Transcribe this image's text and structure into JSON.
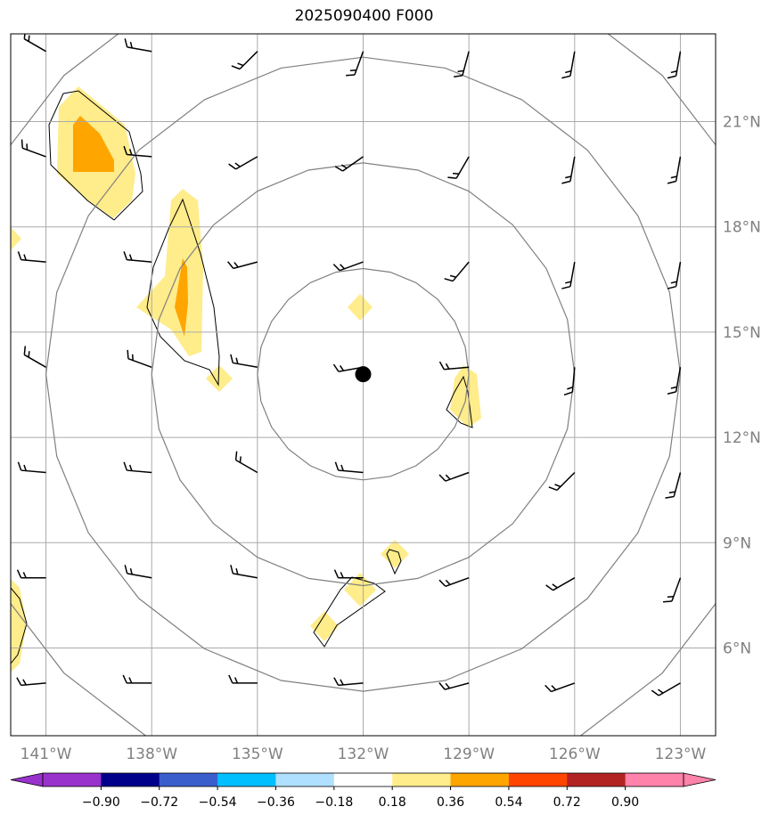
{
  "title": "2025090400 F000",
  "map": {
    "lon_range": [
      -142,
      -122
    ],
    "lat_range": [
      3.5,
      23.5
    ],
    "lon_labels": [
      "141°W",
      "138°W",
      "135°W",
      "132°W",
      "129°W",
      "126°W",
      "123°W"
    ],
    "lon_values": [
      -141,
      -138,
      -135,
      -132,
      -129,
      -126,
      -123
    ],
    "lat_labels": [
      "21°N",
      "18°N",
      "15°N",
      "12°N",
      "9°N",
      "6°N"
    ],
    "lat_values": [
      21,
      18,
      15,
      12,
      9,
      6
    ],
    "grid": true,
    "center": {
      "lon": -132,
      "lat": 13.8
    },
    "range_rings_deg": [
      3,
      6,
      9,
      12
    ]
  },
  "colorbar": {
    "tick_labels": [
      "−0.90",
      "−0.72",
      "−0.54",
      "−0.36",
      "−0.18",
      "0.18",
      "0.36",
      "0.54",
      "0.72",
      "0.90"
    ],
    "colors": [
      "#9932cc",
      "#9932cc",
      "#00008b",
      "#3a5fcd",
      "#00bfff",
      "#b0e0ff",
      "#ffffff",
      "#ffec8b",
      "#ffa500",
      "#ff4500",
      "#b22222",
      "#ff82ab",
      "#ff82ab"
    ]
  },
  "barbs": {
    "lons": [
      -141,
      -138,
      -135,
      -132,
      -129,
      -126,
      -123
    ],
    "lats": [
      23,
      20,
      17,
      14,
      11,
      8,
      5
    ],
    "directions": [
      [
        300,
        280,
        225,
        200,
        195,
        190,
        190
      ],
      [
        290,
        275,
        240,
        235,
        210,
        190,
        190
      ],
      [
        275,
        275,
        255,
        250,
        220,
        190,
        190
      ],
      [
        300,
        290,
        280,
        260,
        265,
        185,
        190
      ],
      [
        275,
        275,
        300,
        275,
        250,
        225,
        195
      ],
      [
        270,
        280,
        280,
        270,
        250,
        240,
        200
      ],
      [
        265,
        270,
        270,
        265,
        255,
        250,
        240
      ]
    ]
  }
}
